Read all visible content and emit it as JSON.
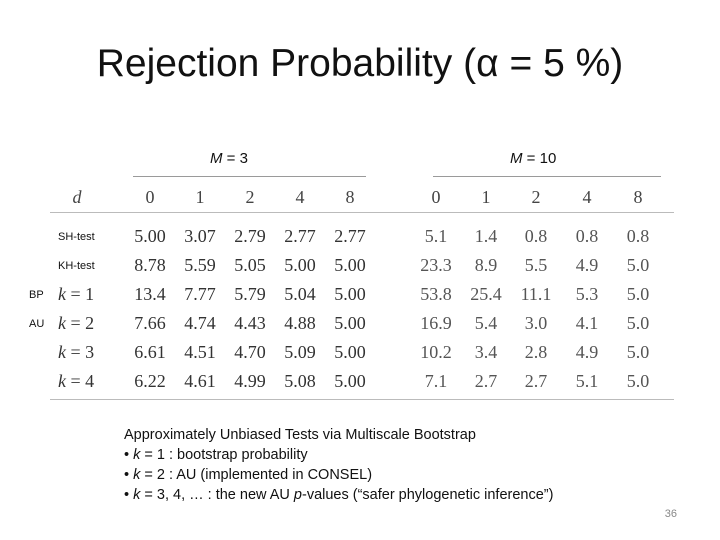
{
  "slide": {
    "title": "Rejection Probability (α = 5 %)",
    "page_number": "36"
  },
  "table": {
    "group_left": {
      "m_label": "M",
      "m_value": "= 3"
    },
    "group_right": {
      "m_label": "M",
      "m_value": "= 10"
    },
    "d_label": "d",
    "d_values": [
      "0",
      "1",
      "2",
      "4",
      "8",
      "0",
      "1",
      "2",
      "4",
      "8"
    ],
    "rows": [
      {
        "tag": "SH-test",
        "label_prefix": "",
        "label_k": "",
        "values": [
          "5.00",
          "3.07",
          "2.79",
          "2.77",
          "2.77",
          "5.1",
          "1.4",
          "0.8",
          "0.8",
          "0.8"
        ]
      },
      {
        "tag": "KH-test",
        "label_prefix": "",
        "label_k": "",
        "values": [
          "8.78",
          "5.59",
          "5.05",
          "5.00",
          "5.00",
          "23.3",
          "8.9",
          "5.5",
          "4.9",
          "5.0"
        ]
      },
      {
        "tag": "BP",
        "label_prefix": "k",
        "label_k": "= 1",
        "values": [
          "13.4",
          "7.77",
          "5.79",
          "5.04",
          "5.00",
          "53.8",
          "25.4",
          "11.1",
          "5.3",
          "5.0"
        ]
      },
      {
        "tag": "AU",
        "label_prefix": "k",
        "label_k": "= 2",
        "values": [
          "7.66",
          "4.74",
          "4.43",
          "4.88",
          "5.00",
          "16.9",
          "5.4",
          "3.0",
          "4.1",
          "5.0"
        ]
      },
      {
        "tag": "",
        "label_prefix": "k",
        "label_k": "= 3",
        "values": [
          "6.61",
          "4.51",
          "4.70",
          "5.09",
          "5.00",
          "10.2",
          "3.4",
          "2.8",
          "4.9",
          "5.0"
        ]
      },
      {
        "tag": "",
        "label_prefix": "k",
        "label_k": "= 4",
        "values": [
          "6.22",
          "4.61",
          "4.99",
          "5.08",
          "5.00",
          "7.1",
          "2.7",
          "2.7",
          "5.1",
          "5.0"
        ]
      }
    ]
  },
  "notes": {
    "heading": "Approximately Unbiased Tests via Multiscale Bootstrap",
    "bullet1": {
      "pre": "• ",
      "var": "k",
      "post": " = 1 : bootstrap probability"
    },
    "bullet2": {
      "pre": "• ",
      "var": "k",
      "post": " = 2 : AU (implemented in CONSEL)"
    },
    "bullet3": {
      "pre": "• ",
      "var": "k",
      "mid": " = 3, 4, … : the new AU ",
      "var2": "p",
      "post": "-values (“safer phylogenetic inference”)"
    }
  }
}
